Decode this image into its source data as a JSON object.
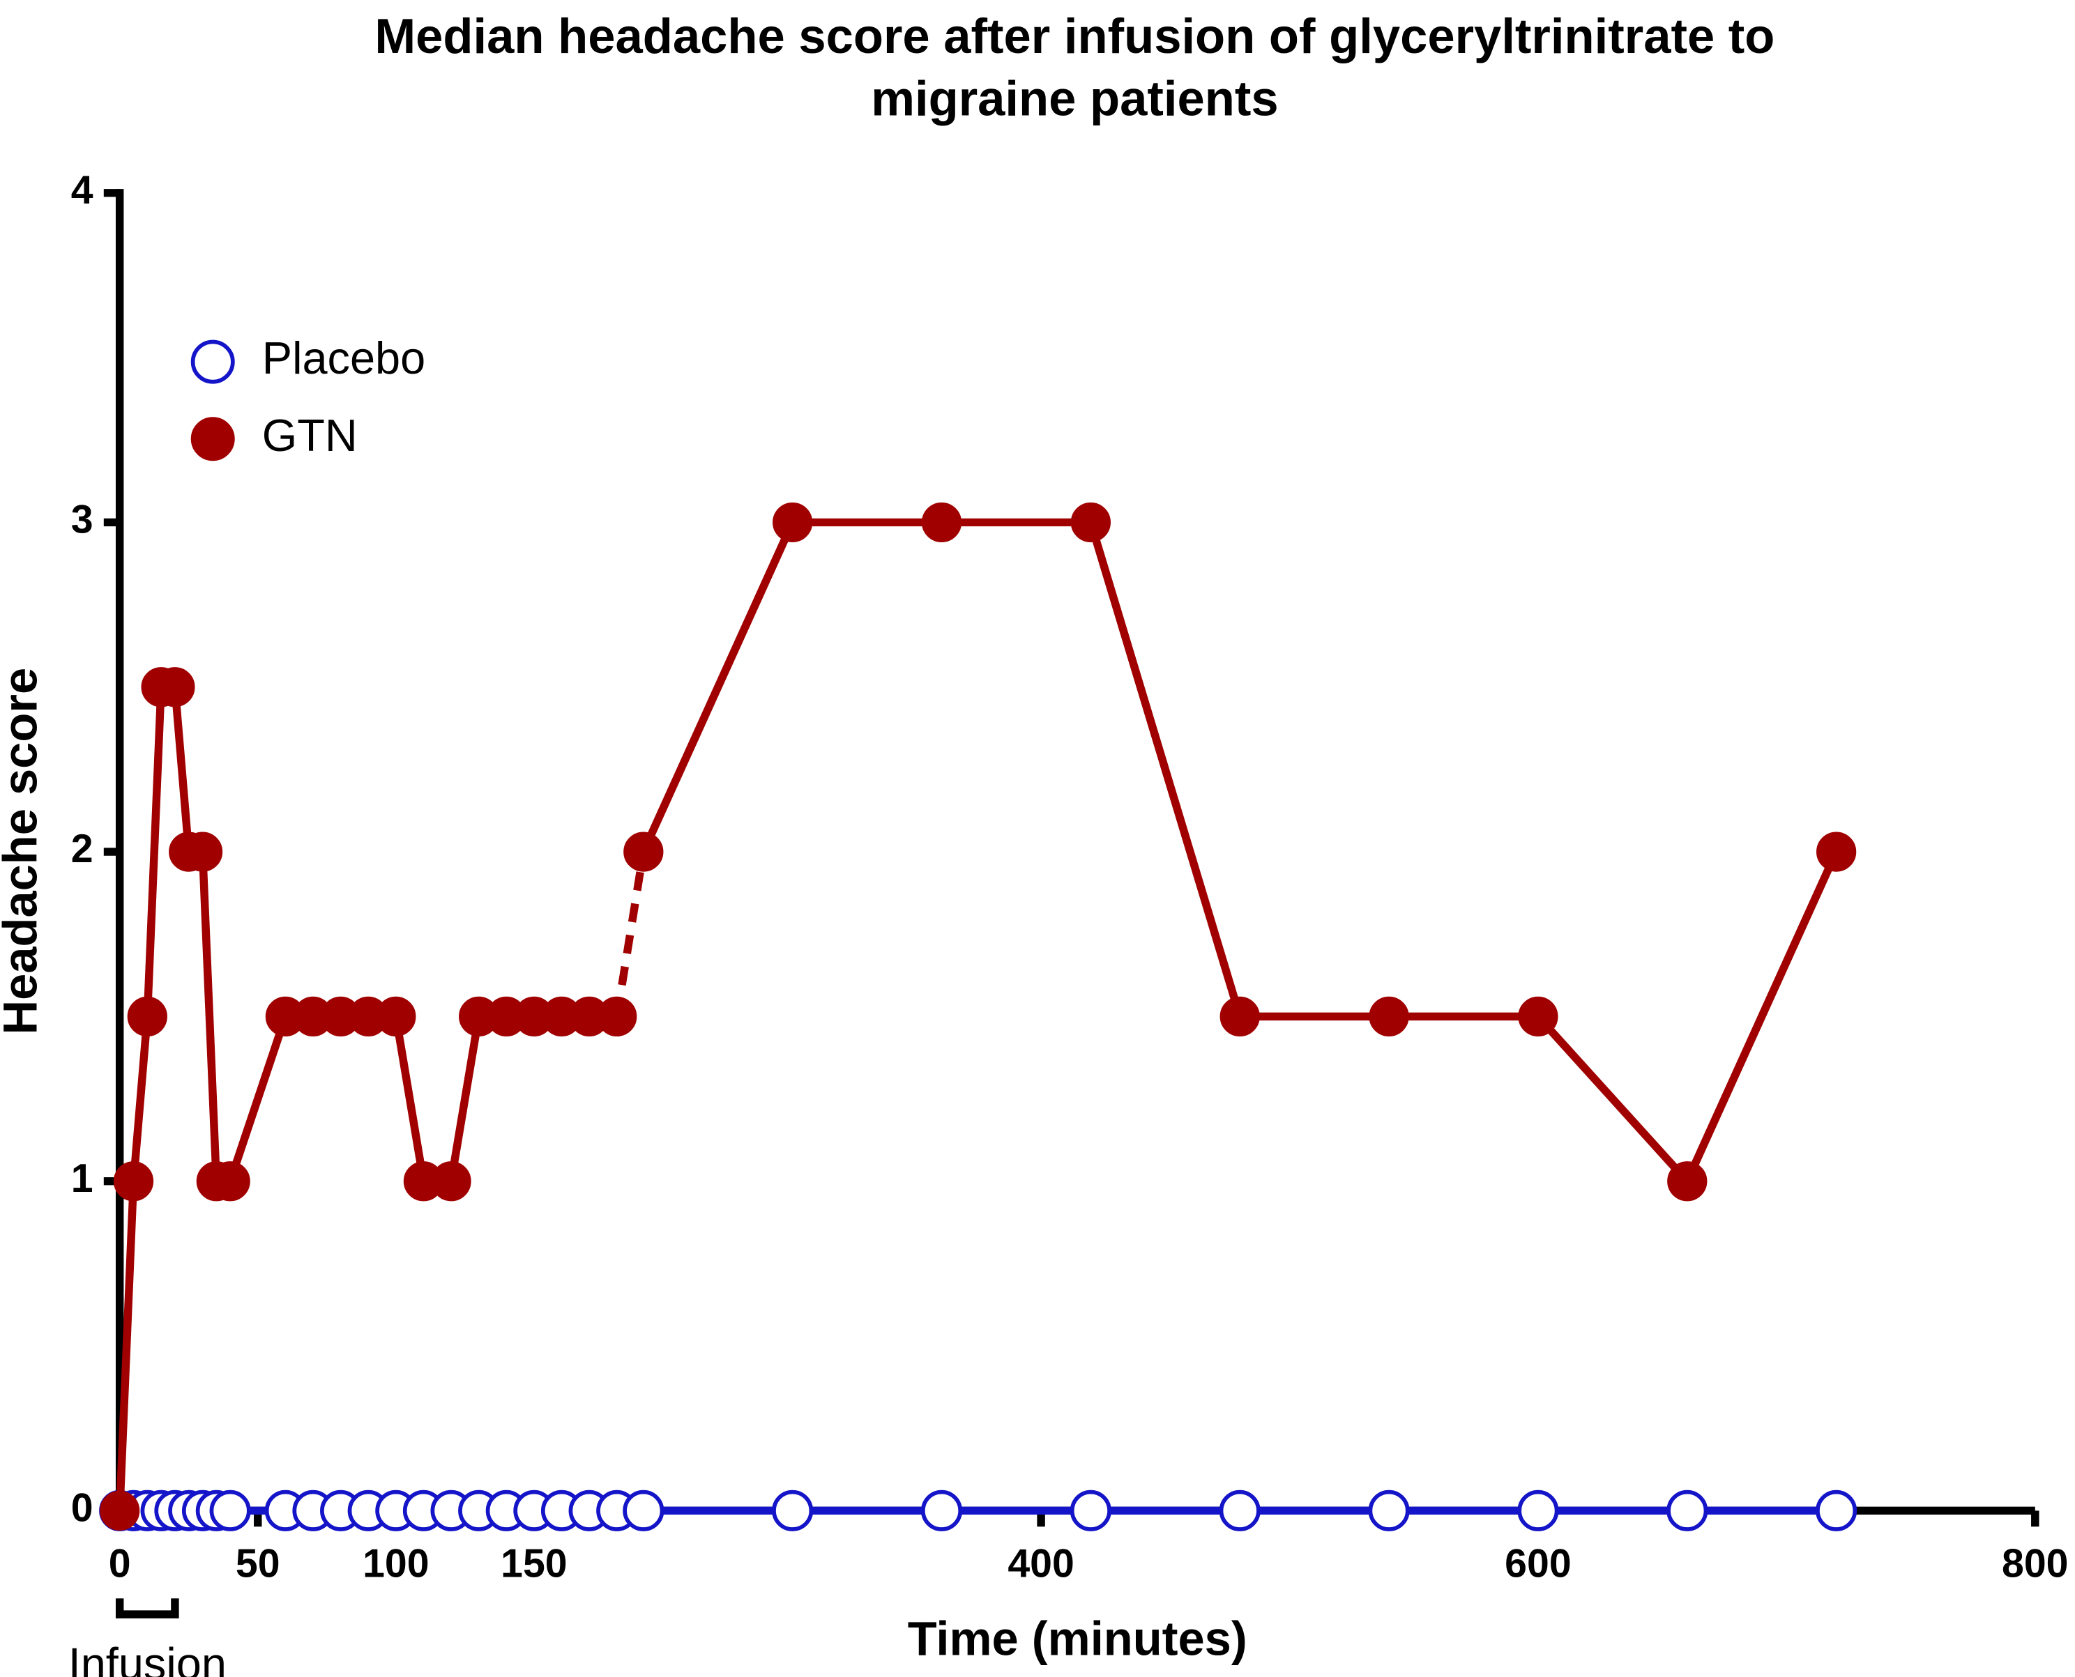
{
  "chart_data": {
    "type": "line",
    "title": [
      "Median headache score after infusion of glyceryltrinitrate to",
      "migraine patients"
    ],
    "x_label": "Time (minutes)",
    "y_label": "Headache score",
    "x": [
      0,
      5,
      10,
      15,
      20,
      25,
      30,
      35,
      40,
      60,
      70,
      80,
      90,
      100,
      110,
      120,
      130,
      140,
      150,
      160,
      170,
      180,
      240,
      300,
      360,
      420,
      480,
      540,
      600,
      660,
      720
    ],
    "series": [
      {
        "name": "Placebo",
        "color": "#1414c8",
        "marker": "open",
        "values": [
          0,
          0,
          0,
          0,
          0,
          0,
          0,
          0,
          0,
          0,
          0,
          0,
          0,
          0,
          0,
          0,
          0,
          0,
          0,
          0,
          0,
          0,
          0,
          0,
          0,
          0,
          0,
          0,
          0,
          0,
          0
        ]
      },
      {
        "name": "GTN",
        "color": "#a00000",
        "marker": "filled",
        "values": [
          0,
          1,
          1.5,
          2.5,
          2.5,
          2,
          2,
          1,
          1,
          1.5,
          1.5,
          1.5,
          1.5,
          1.5,
          1,
          1,
          1.5,
          1.5,
          1.5,
          1.5,
          1.5,
          1.5,
          2,
          3,
          3,
          3,
          1.5,
          1.5,
          1.5,
          1,
          2
        ]
      }
    ],
    "x_segments": [
      {
        "xlim": [
          0,
          183
        ],
        "xticks": [
          0,
          50,
          100,
          150
        ]
      },
      {
        "xlim": [
          238,
          800
        ],
        "xticks": [
          400,
          600,
          800
        ]
      }
    ],
    "ylim": [
      0,
      4
    ],
    "yticks": [
      0,
      1,
      2,
      3,
      4
    ],
    "annotation": {
      "text": "Infusion",
      "x": [
        0,
        20
      ]
    },
    "legend": "top-left"
  }
}
